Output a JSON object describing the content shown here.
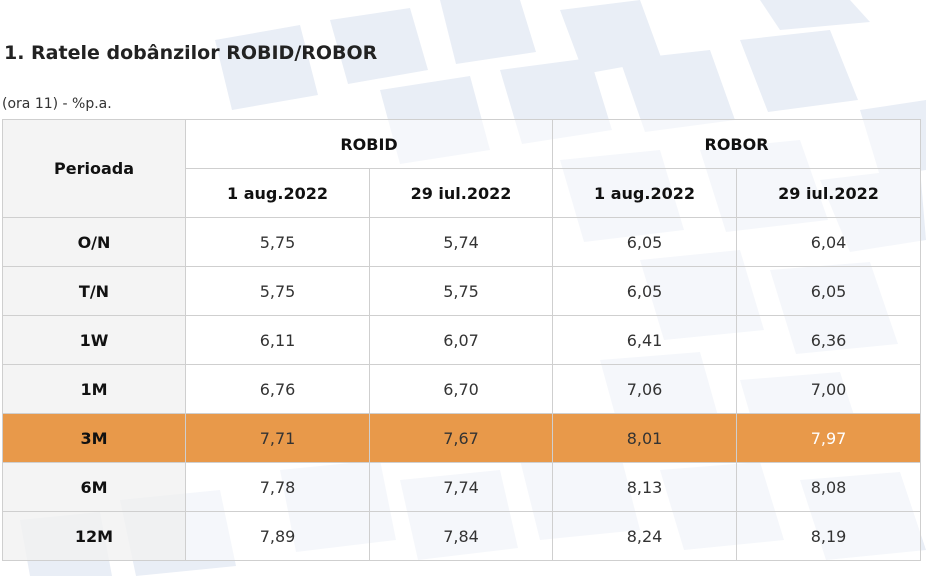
{
  "heading": "1. Ratele dobânzilor ROBID/ROBOR",
  "unit_note": "(ora 11) - %p.a.",
  "table": {
    "period_header": "Perioada",
    "groups": [
      "ROBID",
      "ROBOR"
    ],
    "dates": [
      "1 aug.2022",
      "29 iul.2022",
      "1 aug.2022",
      "29 iul.2022"
    ],
    "rows": [
      {
        "period": "O/N",
        "values": [
          "5,75",
          "5,74",
          "6,05",
          "6,04"
        ]
      },
      {
        "period": "T/N",
        "values": [
          "5,75",
          "5,75",
          "6,05",
          "6,05"
        ]
      },
      {
        "period": "1W",
        "values": [
          "6,11",
          "6,07",
          "6,41",
          "6,36"
        ]
      },
      {
        "period": "1M",
        "values": [
          "6,76",
          "6,70",
          "7,06",
          "7,00"
        ]
      },
      {
        "period": "3M",
        "values": [
          "7,71",
          "7,67",
          "8,01",
          "7,97"
        ],
        "highlighted": true
      },
      {
        "period": "6M",
        "values": [
          "7,78",
          "7,74",
          "8,13",
          "8,08"
        ]
      },
      {
        "period": "12M",
        "values": [
          "7,89",
          "7,84",
          "8,24",
          "8,19"
        ]
      }
    ]
  },
  "colors": {
    "highlight_row": "#e8994a",
    "background_pattern": "#e6ecf5",
    "border": "#cfcfcf"
  }
}
